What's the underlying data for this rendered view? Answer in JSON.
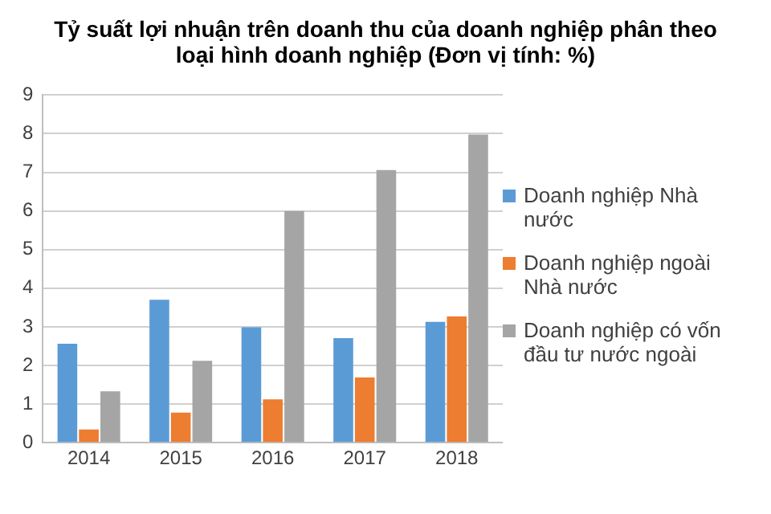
{
  "chart_data": {
    "type": "bar",
    "title": "Tỷ suất lợi nhuận trên doanh thu của doanh nghiệp phân theo loại hình doanh nghiệp (Đơn vị tính: %)",
    "categories": [
      "2014",
      "2015",
      "2016",
      "2017",
      "2018"
    ],
    "series": [
      {
        "name": "Doanh nghiệp Nhà nước",
        "color": "#5b9bd5",
        "values": [
          2.56,
          3.7,
          2.99,
          2.71,
          3.13
        ]
      },
      {
        "name": "Doanh nghiệp ngoài Nhà nước",
        "color": "#ed7d31",
        "values": [
          0.34,
          0.78,
          1.12,
          1.69,
          3.27
        ]
      },
      {
        "name": "Doanh nghiệp có vốn đầu tư nước ngoài",
        "color": "#a5a5a5",
        "values": [
          1.33,
          2.12,
          6.0,
          7.06,
          7.98
        ]
      }
    ],
    "ylim": [
      0,
      9
    ],
    "yticks": [
      0,
      1,
      2,
      3,
      4,
      5,
      6,
      7,
      8,
      9
    ],
    "grid": "y",
    "legend": "right"
  }
}
